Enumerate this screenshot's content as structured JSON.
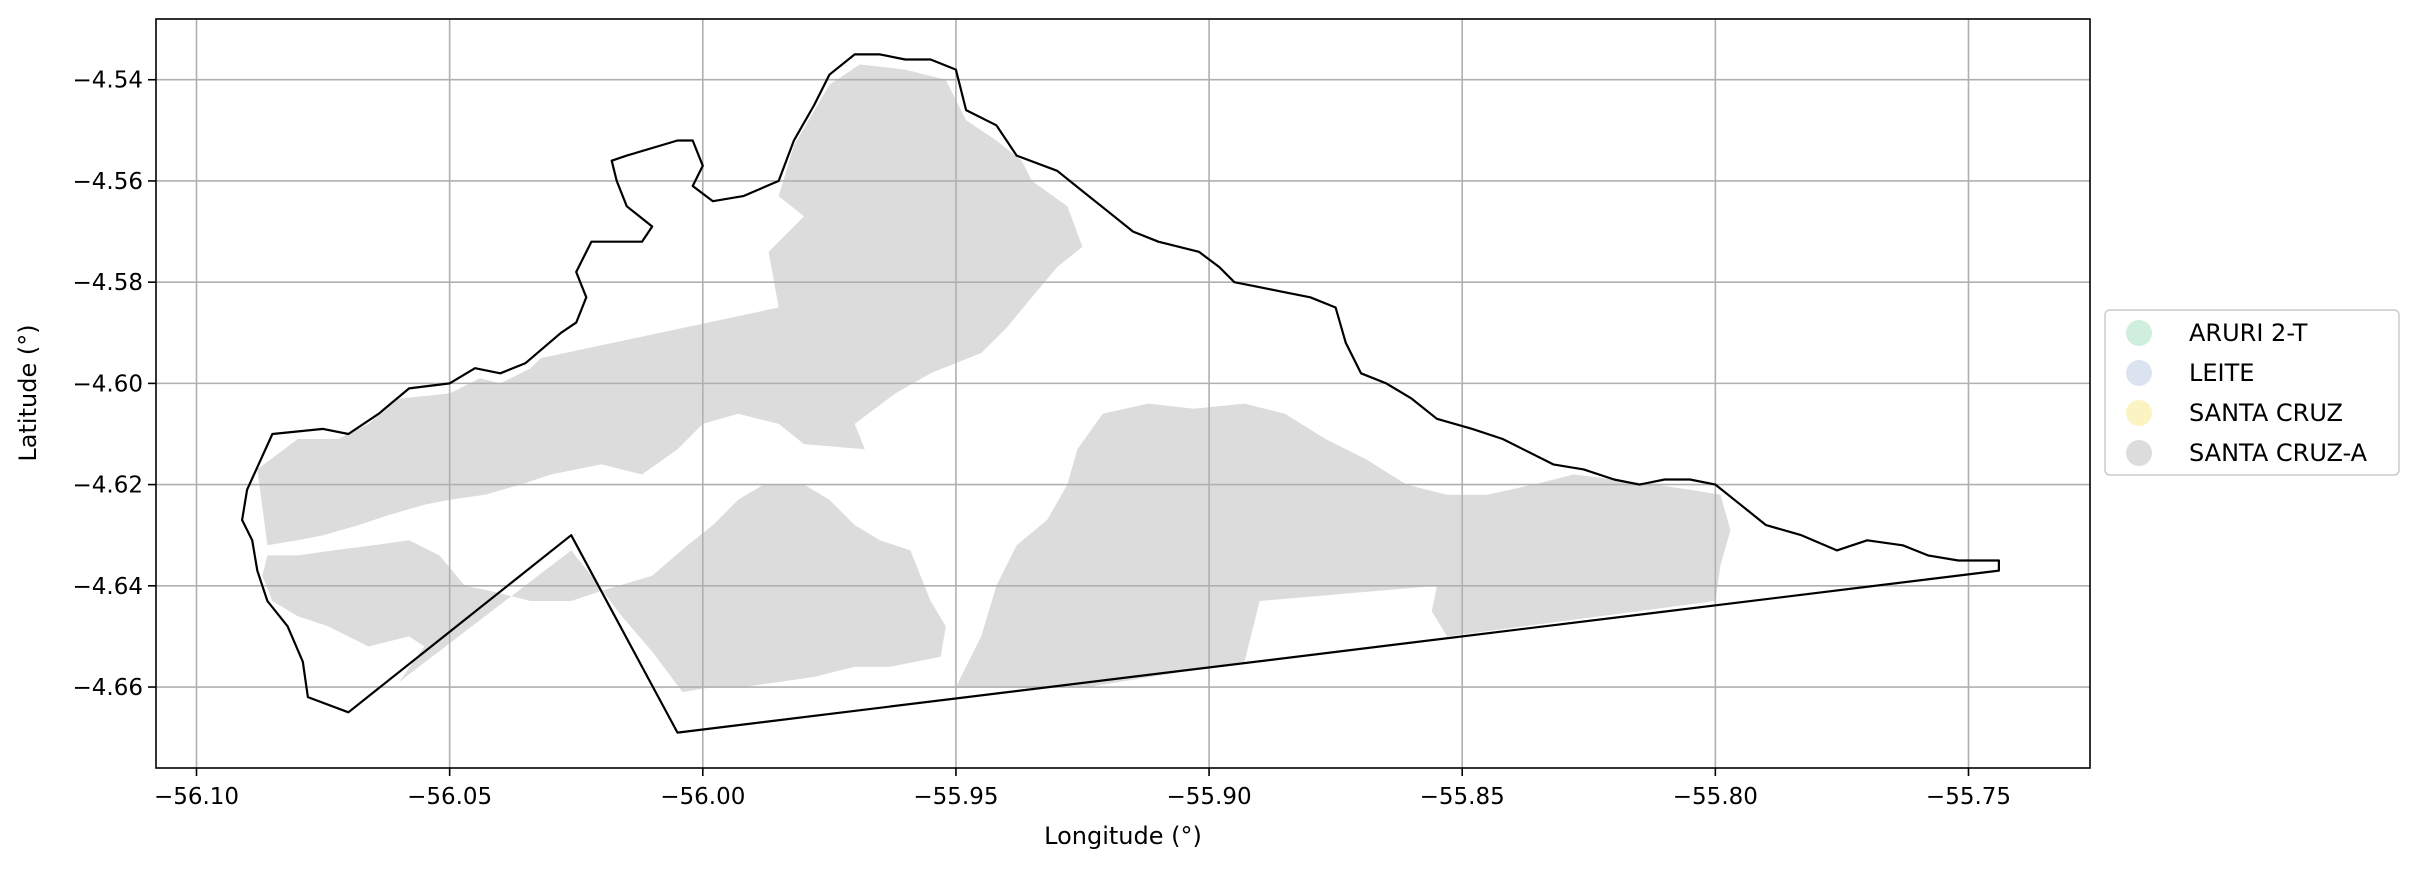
{
  "chart_data": {
    "type": "map",
    "xlabel": "Longitude (°)",
    "ylabel": "Latitude (°)",
    "xlim": [
      -56.108,
      -55.726
    ],
    "ylim": [
      -4.676,
      -4.528
    ],
    "x_ticks": [
      -56.1,
      -56.05,
      -56.0,
      -55.95,
      -55.9,
      -55.85,
      -55.8,
      -55.75
    ],
    "x_tick_labels": [
      "−56.10",
      "−56.05",
      "−56.00",
      "−55.95",
      "−55.90",
      "−55.85",
      "−55.80",
      "−55.75"
    ],
    "y_ticks": [
      -4.54,
      -4.56,
      -4.58,
      -4.6,
      -4.62,
      -4.64,
      -4.66
    ],
    "y_tick_labels": [
      "−4.54",
      "−4.56",
      "−4.58",
      "−4.60",
      "−4.62",
      "−4.64",
      "−4.66"
    ],
    "grid": true,
    "legend_position": "right",
    "legend": [
      {
        "label": "ARURI 2-T",
        "color": "#cfeedd"
      },
      {
        "label": "LEITE",
        "color": "#dbe3f1"
      },
      {
        "label": "SANTA CRUZ",
        "color": "#fbf3c2"
      },
      {
        "label": "SANTA CRUZ-A",
        "color": "#dcdcdc"
      }
    ],
    "boundary": [
      [
        -56.09,
        -4.621
      ],
      [
        -56.085,
        -4.61
      ],
      [
        -56.075,
        -4.609
      ],
      [
        -56.07,
        -4.61
      ],
      [
        -56.064,
        -4.606
      ],
      [
        -56.058,
        -4.601
      ],
      [
        -56.05,
        -4.6
      ],
      [
        -56.045,
        -4.597
      ],
      [
        -56.04,
        -4.598
      ],
      [
        -56.035,
        -4.596
      ],
      [
        -56.028,
        -4.59
      ],
      [
        -56.025,
        -4.588
      ],
      [
        -56.023,
        -4.583
      ],
      [
        -56.025,
        -4.578
      ],
      [
        -56.022,
        -4.572
      ],
      [
        -56.012,
        -4.572
      ],
      [
        -56.01,
        -4.569
      ],
      [
        -56.015,
        -4.565
      ],
      [
        -56.017,
        -4.56
      ],
      [
        -56.018,
        -4.556
      ],
      [
        -56.015,
        -4.555
      ],
      [
        -56.005,
        -4.552
      ],
      [
        -56.002,
        -4.552
      ],
      [
        -56.0,
        -4.557
      ],
      [
        -56.002,
        -4.561
      ],
      [
        -55.998,
        -4.564
      ],
      [
        -55.992,
        -4.563
      ],
      [
        -55.985,
        -4.56
      ],
      [
        -55.982,
        -4.552
      ],
      [
        -55.978,
        -4.545
      ],
      [
        -55.975,
        -4.539
      ],
      [
        -55.97,
        -4.535
      ],
      [
        -55.965,
        -4.535
      ],
      [
        -55.96,
        -4.536
      ],
      [
        -55.955,
        -4.536
      ],
      [
        -55.95,
        -4.538
      ],
      [
        -55.948,
        -4.546
      ],
      [
        -55.942,
        -4.549
      ],
      [
        -55.938,
        -4.555
      ],
      [
        -55.93,
        -4.558
      ],
      [
        -55.925,
        -4.562
      ],
      [
        -55.92,
        -4.566
      ],
      [
        -55.915,
        -4.57
      ],
      [
        -55.91,
        -4.572
      ],
      [
        -55.902,
        -4.574
      ],
      [
        -55.898,
        -4.577
      ],
      [
        -55.895,
        -4.58
      ],
      [
        -55.89,
        -4.581
      ],
      [
        -55.885,
        -4.582
      ],
      [
        -55.88,
        -4.583
      ],
      [
        -55.875,
        -4.585
      ],
      [
        -55.873,
        -4.592
      ],
      [
        -55.87,
        -4.598
      ],
      [
        -55.865,
        -4.6
      ],
      [
        -55.86,
        -4.603
      ],
      [
        -55.855,
        -4.607
      ],
      [
        -55.848,
        -4.609
      ],
      [
        -55.842,
        -4.611
      ],
      [
        -55.838,
        -4.613
      ],
      [
        -55.832,
        -4.616
      ],
      [
        -55.826,
        -4.617
      ],
      [
        -55.82,
        -4.619
      ],
      [
        -55.815,
        -4.62
      ],
      [
        -55.81,
        -4.619
      ],
      [
        -55.805,
        -4.619
      ],
      [
        -55.8,
        -4.62
      ],
      [
        -55.795,
        -4.624
      ],
      [
        -55.79,
        -4.628
      ],
      [
        -55.783,
        -4.63
      ],
      [
        -55.776,
        -4.633
      ],
      [
        -55.77,
        -4.631
      ],
      [
        -55.763,
        -4.632
      ],
      [
        -55.758,
        -4.634
      ],
      [
        -55.752,
        -4.635
      ],
      [
        -55.747,
        -4.635
      ],
      [
        -55.744,
        -4.635
      ],
      [
        -55.744,
        -4.637
      ],
      [
        -56.005,
        -4.669
      ],
      [
        -56.026,
        -4.63
      ],
      [
        -56.07,
        -4.665
      ],
      [
        -56.078,
        -4.662
      ],
      [
        -56.079,
        -4.655
      ],
      [
        -56.082,
        -4.648
      ],
      [
        -56.086,
        -4.643
      ],
      [
        -56.088,
        -4.637
      ],
      [
        -56.089,
        -4.631
      ],
      [
        -56.091,
        -4.627
      ]
    ],
    "fields": [
      [
        [
          -56.088,
          -4.617
        ],
        [
          -56.08,
          -4.611
        ],
        [
          -56.072,
          -4.611
        ],
        [
          -56.066,
          -4.608
        ],
        [
          -56.06,
          -4.603
        ],
        [
          -56.05,
          -4.602
        ],
        [
          -56.044,
          -4.599
        ],
        [
          -56.04,
          -4.6
        ],
        [
          -56.034,
          -4.597
        ],
        [
          -56.032,
          -4.595
        ],
        [
          -55.985,
          -4.585
        ],
        [
          -55.987,
          -4.574
        ],
        [
          -55.98,
          -4.567
        ],
        [
          -55.985,
          -4.563
        ],
        [
          -55.982,
          -4.553
        ],
        [
          -55.975,
          -4.541
        ],
        [
          -55.969,
          -4.537
        ],
        [
          -55.96,
          -4.538
        ],
        [
          -55.952,
          -4.54
        ],
        [
          -55.948,
          -4.548
        ],
        [
          -55.942,
          -4.552
        ],
        [
          -55.937,
          -4.556
        ],
        [
          -55.935,
          -4.56
        ],
        [
          -55.928,
          -4.565
        ],
        [
          -55.925,
          -4.573
        ],
        [
          -55.93,
          -4.577
        ],
        [
          -55.935,
          -4.583
        ],
        [
          -55.94,
          -4.589
        ],
        [
          -55.945,
          -4.594
        ],
        [
          -55.955,
          -4.598
        ],
        [
          -55.962,
          -4.602
        ],
        [
          -55.966,
          -4.605
        ],
        [
          -55.97,
          -4.608
        ],
        [
          -55.968,
          -4.613
        ],
        [
          -55.98,
          -4.612
        ],
        [
          -55.985,
          -4.608
        ],
        [
          -55.993,
          -4.606
        ],
        [
          -56.0,
          -4.608
        ],
        [
          -56.005,
          -4.613
        ],
        [
          -56.012,
          -4.618
        ],
        [
          -56.02,
          -4.616
        ],
        [
          -56.025,
          -4.617
        ],
        [
          -56.03,
          -4.618
        ],
        [
          -56.036,
          -4.62
        ],
        [
          -56.043,
          -4.622
        ],
        [
          -56.05,
          -4.623
        ],
        [
          -56.055,
          -4.624
        ],
        [
          -56.062,
          -4.626
        ],
        [
          -56.068,
          -4.628
        ],
        [
          -56.075,
          -4.63
        ],
        [
          -56.08,
          -4.631
        ],
        [
          -56.086,
          -4.632
        ]
      ],
      [
        [
          -56.086,
          -4.634
        ],
        [
          -56.08,
          -4.634
        ],
        [
          -56.073,
          -4.633
        ],
        [
          -56.065,
          -4.632
        ],
        [
          -56.058,
          -4.631
        ],
        [
          -56.052,
          -4.634
        ],
        [
          -56.047,
          -4.64
        ],
        [
          -56.042,
          -4.641
        ],
        [
          -56.034,
          -4.643
        ],
        [
          -56.026,
          -4.643
        ],
        [
          -56.02,
          -4.641
        ],
        [
          -56.01,
          -4.638
        ],
        [
          -56.003,
          -4.632
        ],
        [
          -55.998,
          -4.628
        ],
        [
          -55.993,
          -4.623
        ],
        [
          -55.988,
          -4.62
        ],
        [
          -55.98,
          -4.62
        ],
        [
          -55.975,
          -4.623
        ],
        [
          -55.97,
          -4.628
        ],
        [
          -55.965,
          -4.631
        ],
        [
          -55.959,
          -4.633
        ],
        [
          -55.957,
          -4.638
        ],
        [
          -55.955,
          -4.643
        ],
        [
          -55.952,
          -4.648
        ],
        [
          -55.953,
          -4.654
        ],
        [
          -55.958,
          -4.655
        ],
        [
          -55.963,
          -4.656
        ],
        [
          -55.97,
          -4.656
        ],
        [
          -55.978,
          -4.658
        ],
        [
          -55.985,
          -4.659
        ],
        [
          -55.992,
          -4.66
        ],
        [
          -55.998,
          -4.66
        ],
        [
          -56.004,
          -4.661
        ],
        [
          -56.01,
          -4.653
        ],
        [
          -56.016,
          -4.646
        ],
        [
          -56.022,
          -4.638
        ],
        [
          -56.026,
          -4.633
        ],
        [
          -56.06,
          -4.659
        ],
        [
          -56.055,
          -4.652
        ],
        [
          -56.058,
          -4.65
        ],
        [
          -56.066,
          -4.652
        ],
        [
          -56.074,
          -4.648
        ],
        [
          -56.08,
          -4.646
        ],
        [
          -56.085,
          -4.643
        ],
        [
          -56.087,
          -4.638
        ]
      ],
      [
        [
          -55.95,
          -4.66
        ],
        [
          -55.945,
          -4.65
        ],
        [
          -55.942,
          -4.64
        ],
        [
          -55.938,
          -4.632
        ],
        [
          -55.932,
          -4.627
        ],
        [
          -55.928,
          -4.62
        ],
        [
          -55.926,
          -4.613
        ],
        [
          -55.921,
          -4.606
        ],
        [
          -55.912,
          -4.604
        ],
        [
          -55.903,
          -4.605
        ],
        [
          -55.893,
          -4.604
        ],
        [
          -55.885,
          -4.606
        ],
        [
          -55.877,
          -4.611
        ],
        [
          -55.869,
          -4.615
        ],
        [
          -55.861,
          -4.62
        ],
        [
          -55.853,
          -4.622
        ],
        [
          -55.845,
          -4.622
        ],
        [
          -55.836,
          -4.62
        ],
        [
          -55.828,
          -4.618
        ],
        [
          -55.82,
          -4.619
        ],
        [
          -55.812,
          -4.62
        ],
        [
          -55.805,
          -4.621
        ],
        [
          -55.799,
          -4.622
        ],
        [
          -55.797,
          -4.629
        ],
        [
          -55.799,
          -4.636
        ],
        [
          -55.8,
          -4.643
        ],
        [
          -55.853,
          -4.65
        ],
        [
          -55.856,
          -4.645
        ],
        [
          -55.855,
          -4.64
        ],
        [
          -55.89,
          -4.643
        ],
        [
          -55.893,
          -4.655
        ],
        [
          -55.924,
          -4.66
        ]
      ]
    ]
  }
}
